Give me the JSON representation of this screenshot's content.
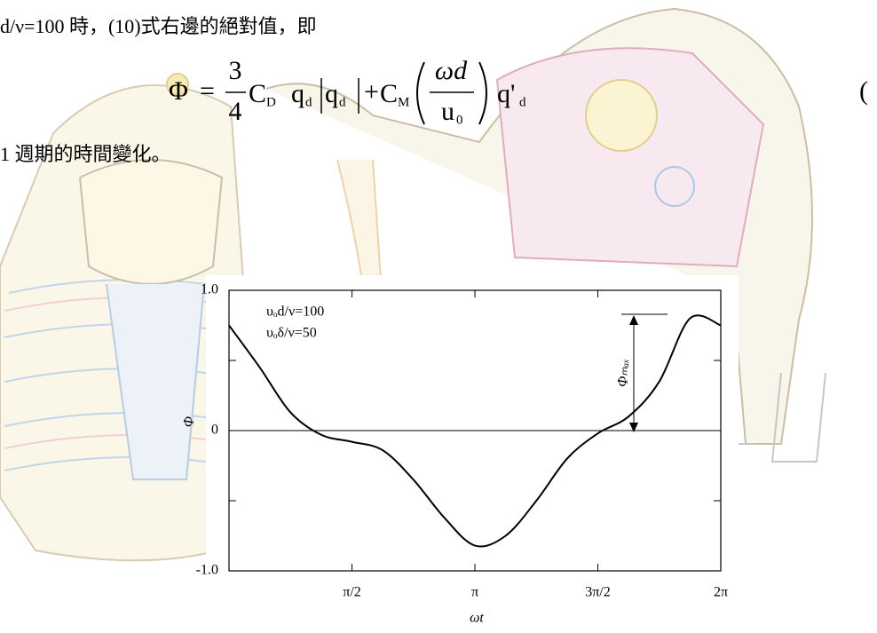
{
  "document": {
    "line1": "d/ν=100 時，(10)式右邊的絕對值，即",
    "equation": {
      "lhs": "Φ",
      "eq": "=",
      "frac_num": "3",
      "frac_den": "4",
      "cd": "C",
      "cd_sub": "D",
      "q1": "q",
      "q1_sub": "d",
      "q2": "q",
      "q2_sub": "d",
      "plus": "+",
      "cm": "C",
      "cm_sub": "M",
      "inner_num": "ωd",
      "inner_den": "u",
      "inner_den_sub": "0",
      "q3": "q'",
      "q3_sub": "d"
    },
    "equation_number": "(",
    "line2": "1 週期的時間變化。"
  },
  "chart_data": {
    "type": "line",
    "xlabel": "ωt",
    "ylabel": "Φ",
    "annotations": [
      "υₒd/ν=100",
      "υₒδ/ν=50"
    ],
    "peak_label": "Φₘₐₓ",
    "x": [
      0,
      0.393,
      0.785,
      1.178,
      1.571,
      1.963,
      2.356,
      2.749,
      3.142,
      3.534,
      3.927,
      4.32,
      4.712,
      5.105,
      5.498,
      5.89,
      6.283
    ],
    "values": [
      0.75,
      0.45,
      0.13,
      -0.03,
      -0.08,
      -0.14,
      -0.35,
      -0.62,
      -0.82,
      -0.75,
      -0.5,
      -0.2,
      -0.02,
      0.1,
      0.35,
      0.8,
      0.75
    ],
    "color": "#000000",
    "xlim": [
      0,
      6.283
    ],
    "ylim": [
      -1,
      1
    ],
    "xticks": [
      {
        "value": 1.571,
        "label": "π/2"
      },
      {
        "value": 3.142,
        "label": "π"
      },
      {
        "value": 4.712,
        "label": "3π/2"
      },
      {
        "value": 6.283,
        "label": "2π"
      }
    ],
    "yticks": [
      {
        "value": -1,
        "label": "-1.0"
      },
      {
        "value": -0.5,
        "label": null
      },
      0,
      {
        "value": 0.5,
        "label": null
      },
      {
        "value": 1,
        "label": "1.0"
      }
    ],
    "zero_line": true,
    "grid": false
  }
}
